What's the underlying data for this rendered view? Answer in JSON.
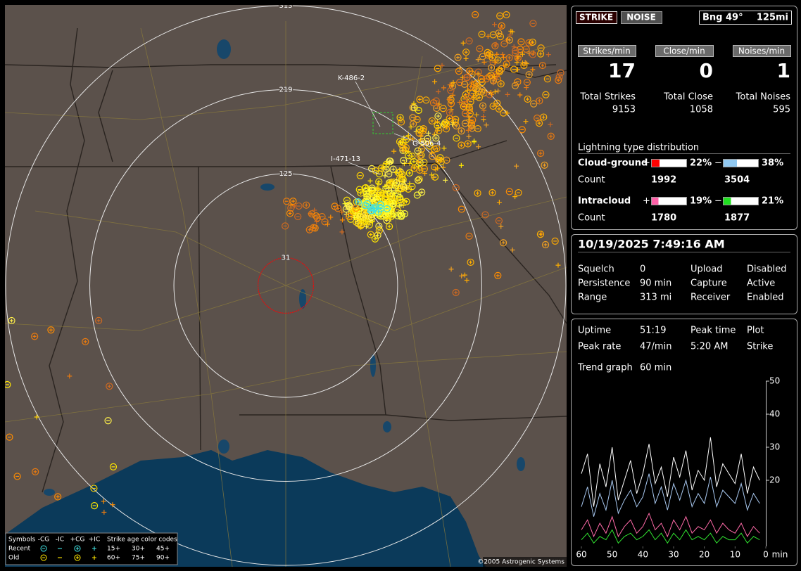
{
  "map": {
    "range_rings": [
      313,
      219,
      125,
      31
    ],
    "strike_labels": [
      "K-486-2",
      "I-471-13",
      "G-506-4"
    ],
    "legend": {
      "symbols": "Symbols",
      "types": [
        "-CG",
        "-IC",
        "+CG",
        "+IC"
      ],
      "recent": "Recent",
      "old": "Old",
      "age_title": "Strike age color codes",
      "ages": [
        "15+",
        "30+",
        "45+",
        "60+",
        "75+",
        "90+"
      ]
    },
    "copyright": "©2005 Astrogenic Systems"
  },
  "status": {
    "buttons": [
      "STRIKE",
      "NOISE"
    ],
    "bearing": "Bng 49°",
    "range": "125mi"
  },
  "rates": [
    {
      "label": "Strikes/min",
      "value": 17,
      "total_label": "Total Strikes",
      "total": 9153
    },
    {
      "label": "Close/min",
      "value": 0,
      "total_label": "Total Close",
      "total": 1058
    },
    {
      "label": "Noises/min",
      "value": 1,
      "total_label": "Total Noises",
      "total": 595
    }
  ],
  "distribution": {
    "title": "Lightning type distribution",
    "rows": [
      {
        "name": "Cloud-ground",
        "positive": "+",
        "pos_pct": {
          "value": 22,
          "label": "22%"
        },
        "negative": "−",
        "neg_pct": {
          "value": 38,
          "label": "38%"
        },
        "count_label": "Count",
        "pos_count": 1992,
        "neg_count": 3504
      },
      {
        "name": "Intracloud",
        "positive": "+",
        "pos_pct": {
          "value": 19,
          "label": "19%"
        },
        "negative": "−",
        "neg_pct": {
          "value": 21,
          "label": "21%"
        },
        "count_label": "Count",
        "pos_count": 1780,
        "neg_count": 1877
      }
    ]
  },
  "clock": "10/19/2025 7:49:16 AM",
  "settings": [
    [
      "Squelch",
      "0",
      "Upload",
      "Disabled"
    ],
    [
      "Persistence",
      "90 min",
      "Capture",
      "Active"
    ],
    [
      "Range",
      "313 mi",
      "Receiver",
      "Enabled"
    ]
  ],
  "info": [
    [
      "Uptime",
      "51:19",
      "Peak time",
      "Plot"
    ],
    [
      "Peak rate",
      "47/min",
      "5:20 AM",
      "Strike"
    ]
  ],
  "trend": [
    "Trend graph",
    "60 min"
  ],
  "chart_data": {
    "type": "line",
    "x": [
      60,
      58,
      56,
      54,
      52,
      50,
      48,
      46,
      44,
      42,
      40,
      38,
      36,
      34,
      32,
      30,
      28,
      26,
      24,
      22,
      20,
      18,
      16,
      14,
      12,
      10,
      8,
      6,
      4,
      2
    ],
    "xlim": [
      60,
      0
    ],
    "xticks": [
      60,
      50,
      40,
      30,
      20,
      10,
      0
    ],
    "x_unit": "min",
    "ylim": [
      0,
      50
    ],
    "yticks": [
      20,
      30,
      40,
      50
    ],
    "series": [
      {
        "color": "#ffffff",
        "values": [
          22,
          28,
          12,
          25,
          18,
          30,
          14,
          20,
          26,
          16,
          22,
          31,
          19,
          24,
          15,
          27,
          21,
          29,
          17,
          23,
          20,
          33,
          18,
          25,
          22,
          19,
          28,
          16,
          24,
          20
        ]
      },
      {
        "color": "#a8c8f0",
        "values": [
          12,
          18,
          9,
          16,
          11,
          20,
          10,
          14,
          17,
          12,
          15,
          22,
          13,
          18,
          11,
          19,
          14,
          20,
          12,
          16,
          13,
          21,
          12,
          17,
          15,
          13,
          19,
          11,
          16,
          13
        ]
      },
      {
        "color": "#ff6aa8",
        "values": [
          5,
          8,
          3,
          7,
          4,
          9,
          3,
          6,
          8,
          4,
          6,
          10,
          5,
          7,
          3,
          8,
          5,
          9,
          4,
          6,
          5,
          8,
          4,
          7,
          5,
          4,
          7,
          3,
          6,
          4
        ]
      },
      {
        "color": "#30e030",
        "values": [
          2,
          4,
          1,
          3,
          2,
          5,
          1,
          3,
          4,
          2,
          3,
          5,
          2,
          4,
          1,
          4,
          2,
          5,
          2,
          3,
          2,
          4,
          1,
          3,
          2,
          2,
          4,
          1,
          3,
          2
        ]
      }
    ]
  }
}
